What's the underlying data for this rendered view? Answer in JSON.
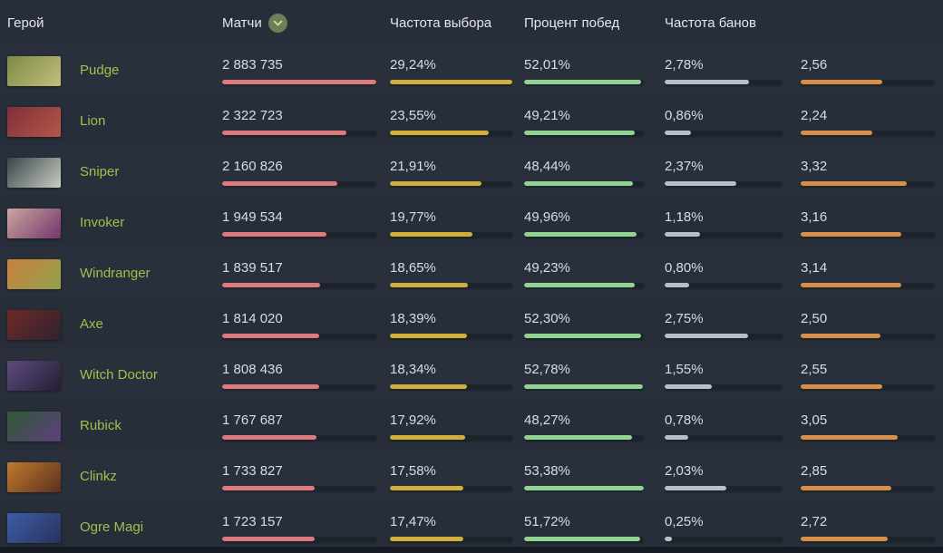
{
  "table": {
    "columns": [
      {
        "key": "hero",
        "label": "Герой"
      },
      {
        "key": "matches",
        "label": "Матчи",
        "sorted_desc": true
      },
      {
        "key": "pick",
        "label": "Частота выбора"
      },
      {
        "key": "win",
        "label": "Процент побед"
      },
      {
        "key": "ban",
        "label": "Частота банов"
      },
      {
        "key": "rating",
        "label": ""
      }
    ],
    "scales": {
      "matches_max": 2883735,
      "pick_max": 29.24,
      "win_max": 53.38,
      "ban_max": 3.9,
      "rating_max": 4.2
    },
    "bar_colors": {
      "matches": "#dc7a7e",
      "pick": "#d2ae3a",
      "win": "#8fd491",
      "ban": "#b9bfc7",
      "rating": "#d69048",
      "track": "#1d232d"
    },
    "sort_icon_colors": {
      "circle": "#6f7e55",
      "chevron": "#cfe0b0"
    },
    "rows": [
      {
        "name": "Pudge",
        "matches": "2 883 735",
        "matches_value": 2883735,
        "pick": "29,24%",
        "pick_value": 29.24,
        "win": "52,01%",
        "win_value": 52.01,
        "ban": "2,78%",
        "ban_value": 2.78,
        "rating": "2,56",
        "rating_value": 2.56,
        "portrait": [
          "#7e8a45",
          "#c3bd7e"
        ]
      },
      {
        "name": "Lion",
        "matches": "2 322 723",
        "matches_value": 2322723,
        "pick": "23,55%",
        "pick_value": 23.55,
        "win": "49,21%",
        "win_value": 49.21,
        "ban": "0,86%",
        "ban_value": 0.86,
        "rating": "2,24",
        "rating_value": 2.24,
        "portrait": [
          "#7e2f3a",
          "#b5574a"
        ]
      },
      {
        "name": "Sniper",
        "matches": "2 160 826",
        "matches_value": 2160826,
        "pick": "21,91%",
        "pick_value": 21.91,
        "win": "48,44%",
        "win_value": 48.44,
        "ban": "2,37%",
        "ban_value": 2.37,
        "rating": "3,32",
        "rating_value": 3.32,
        "portrait": [
          "#39454b",
          "#c9cec2"
        ]
      },
      {
        "name": "Invoker",
        "matches": "1 949 534",
        "matches_value": 1949534,
        "pick": "19,77%",
        "pick_value": 19.77,
        "win": "49,96%",
        "win_value": 49.96,
        "ban": "1,18%",
        "ban_value": 1.18,
        "rating": "3,16",
        "rating_value": 3.16,
        "portrait": [
          "#caa6a0",
          "#74356e"
        ]
      },
      {
        "name": "Windranger",
        "matches": "1 839 517",
        "matches_value": 1839517,
        "pick": "18,65%",
        "pick_value": 18.65,
        "win": "49,23%",
        "win_value": 49.23,
        "ban": "0,80%",
        "ban_value": 0.8,
        "rating": "3,14",
        "rating_value": 3.14,
        "portrait": [
          "#c8803d",
          "#93a14e"
        ]
      },
      {
        "name": "Axe",
        "matches": "1 814 020",
        "matches_value": 1814020,
        "pick": "18,39%",
        "pick_value": 18.39,
        "win": "52,30%",
        "win_value": 52.3,
        "ban": "2,75%",
        "ban_value": 2.75,
        "rating": "2,50",
        "rating_value": 2.5,
        "portrait": [
          "#6e2a26",
          "#2f2230"
        ]
      },
      {
        "name": "Witch Doctor",
        "matches": "1 808 436",
        "matches_value": 1808436,
        "pick": "18,34%",
        "pick_value": 18.34,
        "win": "52,78%",
        "win_value": 52.78,
        "ban": "1,55%",
        "ban_value": 1.55,
        "rating": "2,55",
        "rating_value": 2.55,
        "portrait": [
          "#5d4a7e",
          "#241f31"
        ]
      },
      {
        "name": "Rubick",
        "matches": "1 767 687",
        "matches_value": 1767687,
        "pick": "17,92%",
        "pick_value": 17.92,
        "win": "48,27%",
        "win_value": 48.27,
        "ban": "0,78%",
        "ban_value": 0.78,
        "rating": "3,05",
        "rating_value": 3.05,
        "portrait": [
          "#2f5a33",
          "#5d3f7f"
        ]
      },
      {
        "name": "Clinkz",
        "matches": "1 733 827",
        "matches_value": 1733827,
        "pick": "17,58%",
        "pick_value": 17.58,
        "win": "53,38%",
        "win_value": 53.38,
        "ban": "2,03%",
        "ban_value": 2.03,
        "rating": "2,85",
        "rating_value": 2.85,
        "portrait": [
          "#c27a2f",
          "#59301c"
        ]
      },
      {
        "name": "Ogre Magi",
        "matches": "1 723 157",
        "matches_value": 1723157,
        "pick": "17,47%",
        "pick_value": 17.47,
        "win": "51,72%",
        "win_value": 51.72,
        "ban": "0,25%",
        "ban_value": 0.25,
        "rating": "2,72",
        "rating_value": 2.72,
        "portrait": [
          "#3d5da8",
          "#28335c"
        ]
      }
    ]
  }
}
